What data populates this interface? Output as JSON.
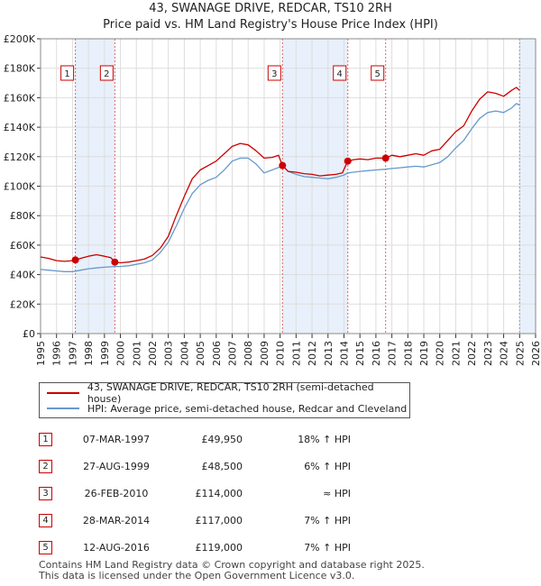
{
  "chart_data": {
    "type": "line",
    "title": "43, SWANAGE DRIVE, REDCAR, TS10 2RH",
    "subtitle": "Price paid vs. HM Land Registry's House Price Index (HPI)",
    "xlim": [
      1995,
      2026
    ],
    "ylim": [
      0,
      200000
    ],
    "x_ticks": [
      "1995",
      "1996",
      "1997",
      "1998",
      "1999",
      "2000",
      "2001",
      "2002",
      "2003",
      "2004",
      "2005",
      "2006",
      "2007",
      "2008",
      "2009",
      "2010",
      "2011",
      "2012",
      "2013",
      "2014",
      "2015",
      "2016",
      "2017",
      "2018",
      "2019",
      "2020",
      "2021",
      "2022",
      "2023",
      "2024",
      "2025",
      "2026"
    ],
    "y_ticks": [
      {
        "value": 0,
        "label": "£0"
      },
      {
        "value": 20000,
        "label": "£20K"
      },
      {
        "value": 40000,
        "label": "£40K"
      },
      {
        "value": 60000,
        "label": "£60K"
      },
      {
        "value": 80000,
        "label": "£80K"
      },
      {
        "value": 100000,
        "label": "£100K"
      },
      {
        "value": 120000,
        "label": "£120K"
      },
      {
        "value": 140000,
        "label": "£140K"
      },
      {
        "value": 160000,
        "label": "£160K"
      },
      {
        "value": 180000,
        "label": "£180K"
      },
      {
        "value": 200000,
        "label": "£200K"
      }
    ],
    "series": [
      {
        "name": "43, SWANAGE DRIVE, REDCAR, TS10 2RH (semi-detached house)",
        "color": "#cc0000",
        "points": [
          [
            1995.0,
            52000
          ],
          [
            1995.5,
            51000
          ],
          [
            1996.0,
            49500
          ],
          [
            1996.5,
            49000
          ],
          [
            1997.0,
            49500
          ],
          [
            1997.18,
            49950
          ],
          [
            1997.5,
            51000
          ],
          [
            1998.0,
            52500
          ],
          [
            1998.5,
            53500
          ],
          [
            1999.0,
            52500
          ],
          [
            1999.4,
            51500
          ],
          [
            1999.65,
            48500
          ],
          [
            2000.0,
            48000
          ],
          [
            2000.5,
            48500
          ],
          [
            2001.0,
            49500
          ],
          [
            2001.5,
            50500
          ],
          [
            2002.0,
            53000
          ],
          [
            2002.5,
            58000
          ],
          [
            2003.0,
            66000
          ],
          [
            2003.5,
            80000
          ],
          [
            2004.0,
            93000
          ],
          [
            2004.5,
            105000
          ],
          [
            2005.0,
            111000
          ],
          [
            2005.5,
            114000
          ],
          [
            2006.0,
            117000
          ],
          [
            2006.5,
            122000
          ],
          [
            2007.0,
            127000
          ],
          [
            2007.5,
            129000
          ],
          [
            2008.0,
            128000
          ],
          [
            2008.5,
            124000
          ],
          [
            2009.0,
            119000
          ],
          [
            2009.5,
            119500
          ],
          [
            2009.9,
            121000
          ],
          [
            2010.15,
            114000
          ],
          [
            2010.5,
            110000
          ],
          [
            2011.0,
            109500
          ],
          [
            2011.5,
            108500
          ],
          [
            2012.0,
            108000
          ],
          [
            2012.5,
            107000
          ],
          [
            2013.0,
            107500
          ],
          [
            2013.5,
            108000
          ],
          [
            2013.9,
            109000
          ],
          [
            2014.24,
            117000
          ],
          [
            2014.6,
            118000
          ],
          [
            2015.0,
            118500
          ],
          [
            2015.5,
            118000
          ],
          [
            2016.0,
            119000
          ],
          [
            2016.61,
            119000
          ],
          [
            2017.0,
            121000
          ],
          [
            2017.5,
            120000
          ],
          [
            2018.0,
            121000
          ],
          [
            2018.5,
            122000
          ],
          [
            2019.0,
            121000
          ],
          [
            2019.5,
            124000
          ],
          [
            2020.0,
            125000
          ],
          [
            2020.5,
            131000
          ],
          [
            2021.0,
            137000
          ],
          [
            2021.5,
            141000
          ],
          [
            2022.0,
            151000
          ],
          [
            2022.5,
            159000
          ],
          [
            2023.0,
            164000
          ],
          [
            2023.5,
            163000
          ],
          [
            2024.0,
            161000
          ],
          [
            2024.5,
            165000
          ],
          [
            2024.8,
            167000
          ],
          [
            2025.0,
            165000
          ]
        ]
      },
      {
        "name": "HPI: Average price, semi-detached house, Redcar and Cleveland",
        "color": "#6699cc",
        "points": [
          [
            1995.0,
            43500
          ],
          [
            1995.5,
            43000
          ],
          [
            1996.0,
            42500
          ],
          [
            1996.5,
            42000
          ],
          [
            1997.0,
            42000
          ],
          [
            1997.18,
            42300
          ],
          [
            1997.5,
            43000
          ],
          [
            1998.0,
            44000
          ],
          [
            1998.5,
            44500
          ],
          [
            1999.0,
            45000
          ],
          [
            1999.65,
            45500
          ],
          [
            2000.0,
            45500
          ],
          [
            2000.5,
            46000
          ],
          [
            2001.0,
            47000
          ],
          [
            2001.5,
            48000
          ],
          [
            2002.0,
            50000
          ],
          [
            2002.5,
            55000
          ],
          [
            2003.0,
            62000
          ],
          [
            2003.5,
            73000
          ],
          [
            2004.0,
            85000
          ],
          [
            2004.5,
            95000
          ],
          [
            2005.0,
            101000
          ],
          [
            2005.5,
            104000
          ],
          [
            2006.0,
            106000
          ],
          [
            2006.5,
            111000
          ],
          [
            2007.0,
            117000
          ],
          [
            2007.5,
            119000
          ],
          [
            2008.0,
            119000
          ],
          [
            2008.5,
            115000
          ],
          [
            2009.0,
            109000
          ],
          [
            2009.5,
            111000
          ],
          [
            2010.0,
            113000
          ],
          [
            2010.15,
            114000
          ],
          [
            2010.5,
            110000
          ],
          [
            2011.0,
            108000
          ],
          [
            2011.5,
            106500
          ],
          [
            2012.0,
            106000
          ],
          [
            2012.5,
            105500
          ],
          [
            2013.0,
            105000
          ],
          [
            2013.5,
            106000
          ],
          [
            2014.0,
            107500
          ],
          [
            2014.24,
            109000
          ],
          [
            2014.6,
            109500
          ],
          [
            2015.0,
            110000
          ],
          [
            2015.5,
            110500
          ],
          [
            2016.0,
            111000
          ],
          [
            2016.61,
            111500
          ],
          [
            2017.0,
            112000
          ],
          [
            2017.5,
            112500
          ],
          [
            2018.0,
            113000
          ],
          [
            2018.5,
            113500
          ],
          [
            2019.0,
            113000
          ],
          [
            2019.5,
            114500
          ],
          [
            2020.0,
            116000
          ],
          [
            2020.5,
            120000
          ],
          [
            2021.0,
            126000
          ],
          [
            2021.5,
            131000
          ],
          [
            2022.0,
            139000
          ],
          [
            2022.5,
            146000
          ],
          [
            2023.0,
            150000
          ],
          [
            2023.5,
            151000
          ],
          [
            2024.0,
            150000
          ],
          [
            2024.5,
            153000
          ],
          [
            2024.8,
            156000
          ],
          [
            2025.0,
            155000
          ]
        ]
      }
    ],
    "transactions": [
      {
        "num": "1",
        "x": 1997.18,
        "price": 49950
      },
      {
        "num": "2",
        "x": 1999.65,
        "price": 48500
      },
      {
        "num": "3",
        "x": 2010.15,
        "price": 114000
      },
      {
        "num": "4",
        "x": 2014.24,
        "price": 117000
      },
      {
        "num": "5",
        "x": 2016.61,
        "price": 119000
      }
    ],
    "shaded_ranges": [
      [
        1997.18,
        1999.65
      ],
      [
        2010.15,
        2014.24
      ],
      [
        2025.0,
        2026.0
      ]
    ],
    "colors": {
      "shade": "#e8f0fb",
      "grid": "#dddddd",
      "marker": "#cc0000",
      "vline": "#dd6666"
    }
  },
  "legend": {
    "red_label": "43, SWANAGE DRIVE, REDCAR, TS10 2RH (semi-detached house)",
    "blue_label": "HPI: Average price, semi-detached house, Redcar and Cleveland"
  },
  "table": [
    {
      "num": "1",
      "date": "07-MAR-1997",
      "price": "£49,950",
      "hpi": "18% ↑ HPI"
    },
    {
      "num": "2",
      "date": "27-AUG-1999",
      "price": "£48,500",
      "hpi": "6% ↑ HPI"
    },
    {
      "num": "3",
      "date": "26-FEB-2010",
      "price": "£114,000",
      "hpi": "≈ HPI"
    },
    {
      "num": "4",
      "date": "28-MAR-2014",
      "price": "£117,000",
      "hpi": "7% ↑ HPI"
    },
    {
      "num": "5",
      "date": "12-AUG-2016",
      "price": "£119,000",
      "hpi": "7% ↑ HPI"
    }
  ],
  "footer": {
    "line1": "Contains HM Land Registry data © Crown copyright and database right 2025.",
    "line2": "This data is licensed under the Open Government Licence v3.0."
  }
}
